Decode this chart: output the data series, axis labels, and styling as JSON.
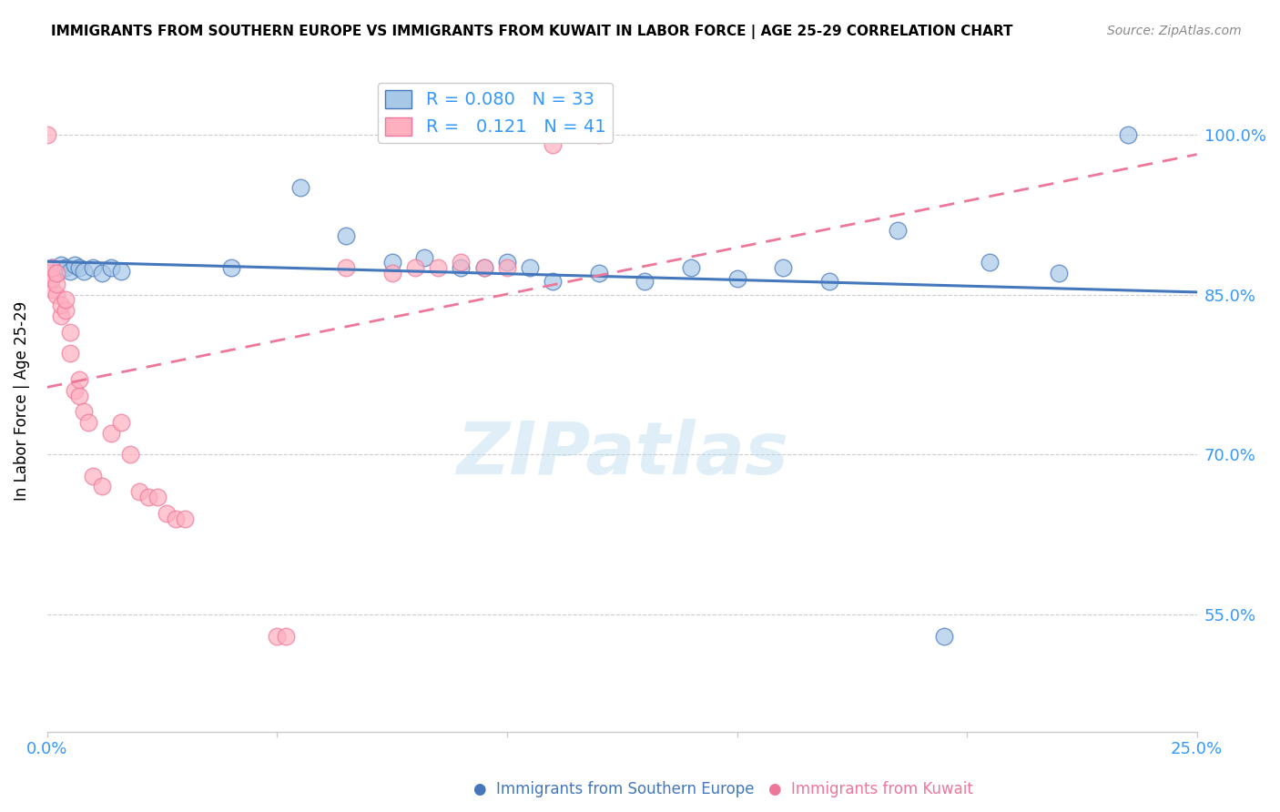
{
  "title": "IMMIGRANTS FROM SOUTHERN EUROPE VS IMMIGRANTS FROM KUWAIT IN LABOR FORCE | AGE 25-29 CORRELATION CHART",
  "source": "Source: ZipAtlas.com",
  "ylabel": "In Labor Force | Age 25-29",
  "ytick_values": [
    1.0,
    0.85,
    0.7,
    0.55
  ],
  "xlim": [
    0.0,
    0.25
  ],
  "ylim": [
    0.44,
    1.06
  ],
  "blue_R": 0.08,
  "blue_N": 33,
  "pink_R": 0.121,
  "pink_N": 41,
  "blue_color": "#A8C8E8",
  "pink_color": "#FFB0C0",
  "blue_line_color": "#4477BB",
  "pink_line_color": "#EE7799",
  "watermark": "ZIPatlas",
  "legend_label_blue": "Immigrants from Southern Europe",
  "legend_label_pink": "Immigrants from Kuwait",
  "blue_scatter_x": [
    0.001,
    0.002,
    0.003,
    0.004,
    0.005,
    0.006,
    0.007,
    0.008,
    0.01,
    0.012,
    0.014,
    0.016,
    0.04,
    0.055,
    0.065,
    0.075,
    0.082,
    0.09,
    0.095,
    0.1,
    0.105,
    0.11,
    0.12,
    0.13,
    0.14,
    0.15,
    0.16,
    0.17,
    0.185,
    0.195,
    0.205,
    0.22,
    0.235
  ],
  "blue_scatter_y": [
    0.875,
    0.87,
    0.878,
    0.875,
    0.872,
    0.878,
    0.875,
    0.872,
    0.875,
    0.87,
    0.875,
    0.872,
    0.875,
    0.95,
    0.905,
    0.88,
    0.885,
    0.875,
    0.875,
    0.88,
    0.875,
    0.862,
    0.87,
    0.862,
    0.875,
    0.865,
    0.875,
    0.862,
    0.91,
    0.53,
    0.88,
    0.87,
    1.0
  ],
  "pink_scatter_x": [
    0.0,
    0.0,
    0.001,
    0.001,
    0.001,
    0.002,
    0.002,
    0.002,
    0.003,
    0.003,
    0.004,
    0.004,
    0.005,
    0.005,
    0.006,
    0.007,
    0.007,
    0.008,
    0.009,
    0.01,
    0.012,
    0.014,
    0.016,
    0.018,
    0.02,
    0.022,
    0.024,
    0.026,
    0.028,
    0.03,
    0.05,
    0.052,
    0.065,
    0.075,
    0.08,
    0.085,
    0.09,
    0.095,
    0.1,
    0.11,
    0.12
  ],
  "pink_scatter_y": [
    0.87,
    1.0,
    0.855,
    0.865,
    0.875,
    0.85,
    0.86,
    0.87,
    0.83,
    0.84,
    0.835,
    0.845,
    0.795,
    0.815,
    0.76,
    0.755,
    0.77,
    0.74,
    0.73,
    0.68,
    0.67,
    0.72,
    0.73,
    0.7,
    0.665,
    0.66,
    0.66,
    0.645,
    0.64,
    0.64,
    0.53,
    0.53,
    0.875,
    0.87,
    0.875,
    0.875,
    0.88,
    0.875,
    0.875,
    0.99,
    1.0
  ],
  "background_color": "#FFFFFF",
  "grid_color": "#CCCCCC"
}
